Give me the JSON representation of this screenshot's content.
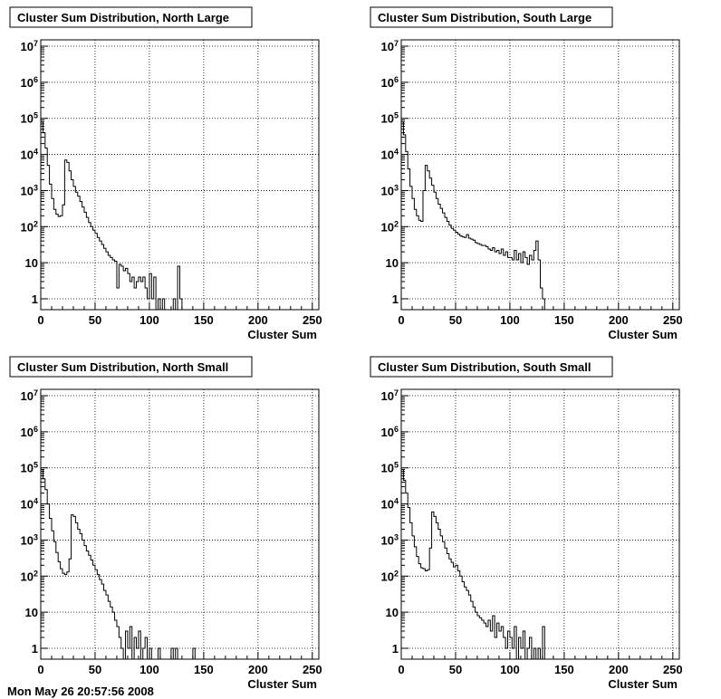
{
  "footer": "Mon May 26 20:57:56 2008",
  "chart_data": [
    {
      "type": "histogram",
      "title": "Cluster Sum Distribution, North Large",
      "xlabel": "Cluster Sum",
      "ylabel": "",
      "xlim": [
        0,
        256
      ],
      "ylim": [
        0.5,
        15000000
      ],
      "yscale": "log",
      "grid": true,
      "x_ticks": [
        0,
        50,
        100,
        150,
        200,
        250
      ],
      "y_ticks": [
        {
          "value": 1,
          "base": "1",
          "exp": ""
        },
        {
          "value": 10,
          "base": "10",
          "exp": ""
        },
        {
          "value": 100,
          "base": "10",
          "exp": "2"
        },
        {
          "value": 1000,
          "base": "10",
          "exp": "3"
        },
        {
          "value": 10000,
          "base": "10",
          "exp": "4"
        },
        {
          "value": 100000,
          "base": "10",
          "exp": "5"
        },
        {
          "value": 1000000,
          "base": "10",
          "exp": "6"
        },
        {
          "value": 10000000,
          "base": "10",
          "exp": "7"
        }
      ],
      "x": [
        0,
        2,
        4,
        6,
        8,
        10,
        12,
        14,
        16,
        18,
        20,
        22,
        24,
        26,
        28,
        30,
        32,
        34,
        36,
        38,
        40,
        42,
        44,
        46,
        48,
        50,
        52,
        54,
        56,
        58,
        60,
        62,
        64,
        66,
        68,
        70,
        72,
        74,
        76,
        78,
        80,
        82,
        84,
        86,
        88,
        90,
        92,
        94,
        96,
        98,
        100,
        102,
        104,
        106,
        108,
        110,
        112,
        114,
        116,
        118,
        120,
        122,
        124,
        126,
        128
      ],
      "values": [
        80000,
        40000,
        15000,
        5000,
        1500,
        600,
        300,
        220,
        190,
        200,
        400,
        7000,
        6000,
        3500,
        2000,
        1300,
        900,
        700,
        500,
        350,
        250,
        180,
        130,
        100,
        80,
        65,
        50,
        40,
        32,
        25,
        20,
        16,
        14,
        12,
        11,
        2,
        9,
        8,
        6,
        7,
        5,
        3,
        4,
        2,
        3,
        4,
        3,
        4,
        2,
        1,
        5,
        1,
        4,
        0.5,
        1,
        0.5,
        1,
        0.5,
        0.5,
        0.5,
        0.5,
        1,
        0.5,
        8,
        1
      ]
    },
    {
      "type": "histogram",
      "title": "Cluster Sum Distribution, South Large",
      "xlabel": "Cluster Sum",
      "ylabel": "",
      "xlim": [
        0,
        256
      ],
      "ylim": [
        0.5,
        15000000
      ],
      "yscale": "log",
      "grid": true,
      "x_ticks": [
        0,
        50,
        100,
        150,
        200,
        250
      ],
      "y_ticks": [
        {
          "value": 1,
          "base": "1",
          "exp": ""
        },
        {
          "value": 10,
          "base": "10",
          "exp": ""
        },
        {
          "value": 100,
          "base": "10",
          "exp": "2"
        },
        {
          "value": 1000,
          "base": "10",
          "exp": "3"
        },
        {
          "value": 10000,
          "base": "10",
          "exp": "4"
        },
        {
          "value": 100000,
          "base": "10",
          "exp": "5"
        },
        {
          "value": 1000000,
          "base": "10",
          "exp": "6"
        },
        {
          "value": 10000000,
          "base": "10",
          "exp": "7"
        }
      ],
      "x": [
        0,
        2,
        4,
        6,
        8,
        10,
        12,
        14,
        16,
        18,
        20,
        22,
        24,
        26,
        28,
        30,
        32,
        34,
        36,
        38,
        40,
        42,
        44,
        46,
        48,
        50,
        52,
        54,
        56,
        58,
        60,
        62,
        64,
        66,
        68,
        70,
        72,
        74,
        76,
        78,
        80,
        82,
        84,
        86,
        88,
        90,
        92,
        94,
        96,
        98,
        100,
        102,
        104,
        106,
        108,
        110,
        112,
        114,
        116,
        118,
        120,
        122,
        124,
        126,
        128,
        130,
        132
      ],
      "values": [
        80000,
        35000,
        12000,
        4000,
        1300,
        600,
        300,
        200,
        150,
        140,
        1000,
        5000,
        3500,
        2200,
        1400,
        900,
        600,
        420,
        320,
        240,
        180,
        140,
        110,
        90,
        80,
        70,
        62,
        55,
        52,
        50,
        60,
        48,
        45,
        42,
        36,
        34,
        32,
        30,
        30,
        28,
        24,
        22,
        26,
        20,
        22,
        18,
        24,
        16,
        20,
        14,
        14,
        12,
        22,
        12,
        18,
        10,
        20,
        14,
        9,
        16,
        12,
        22,
        40,
        12,
        2,
        1,
        0.5
      ]
    },
    {
      "type": "histogram",
      "title": "Cluster Sum Distribution, North Small",
      "xlabel": "Cluster Sum",
      "ylabel": "",
      "xlim": [
        0,
        256
      ],
      "ylim": [
        0.5,
        15000000
      ],
      "yscale": "log",
      "grid": true,
      "x_ticks": [
        0,
        50,
        100,
        150,
        200,
        250
      ],
      "y_ticks": [
        {
          "value": 1,
          "base": "1",
          "exp": ""
        },
        {
          "value": 10,
          "base": "10",
          "exp": ""
        },
        {
          "value": 100,
          "base": "10",
          "exp": "2"
        },
        {
          "value": 1000,
          "base": "10",
          "exp": "3"
        },
        {
          "value": 10000,
          "base": "10",
          "exp": "4"
        },
        {
          "value": 100000,
          "base": "10",
          "exp": "5"
        },
        {
          "value": 1000000,
          "base": "10",
          "exp": "6"
        },
        {
          "value": 10000000,
          "base": "10",
          "exp": "7"
        }
      ],
      "x": [
        0,
        2,
        4,
        6,
        8,
        10,
        12,
        14,
        16,
        18,
        20,
        22,
        24,
        26,
        28,
        30,
        32,
        34,
        36,
        38,
        40,
        42,
        44,
        46,
        48,
        50,
        52,
        54,
        56,
        58,
        60,
        62,
        64,
        66,
        68,
        70,
        72,
        74,
        76,
        78,
        80,
        82,
        84,
        86,
        88,
        90,
        92,
        94,
        96,
        98,
        100,
        102,
        104,
        106,
        108,
        110,
        112,
        114,
        116,
        118,
        120,
        122,
        124,
        126,
        128,
        130,
        132,
        134,
        136,
        138,
        140,
        142
      ],
      "values": [
        90000,
        50000,
        25000,
        10000,
        4000,
        1800,
        900,
        450,
        250,
        160,
        120,
        110,
        130,
        300,
        5000,
        4500,
        3000,
        2000,
        1500,
        1000,
        700,
        500,
        380,
        280,
        200,
        150,
        110,
        80,
        60,
        40,
        30,
        20,
        14,
        10,
        6,
        4,
        2,
        1,
        0.5,
        3,
        1,
        4,
        0.5,
        2,
        1,
        3,
        0.5,
        1,
        2,
        0.5,
        1,
        0.5,
        0.5,
        0.5,
        1,
        0.5,
        0.5,
        0.5,
        0.5,
        0.5,
        1,
        0.5,
        1,
        0.5,
        0.5,
        0.5,
        0.5,
        0.5,
        0.5,
        0.5,
        1,
        0.5
      ]
    },
    {
      "type": "histogram",
      "title": "Cluster Sum Distribution, South Small",
      "xlabel": "Cluster Sum",
      "ylabel": "",
      "xlim": [
        0,
        256
      ],
      "ylim": [
        0.5,
        15000000
      ],
      "yscale": "log",
      "grid": true,
      "x_ticks": [
        0,
        50,
        100,
        150,
        200,
        250
      ],
      "y_ticks": [
        {
          "value": 1,
          "base": "1",
          "exp": ""
        },
        {
          "value": 10,
          "base": "10",
          "exp": ""
        },
        {
          "value": 100,
          "base": "10",
          "exp": "2"
        },
        {
          "value": 1000,
          "base": "10",
          "exp": "3"
        },
        {
          "value": 10000,
          "base": "10",
          "exp": "4"
        },
        {
          "value": 100000,
          "base": "10",
          "exp": "5"
        },
        {
          "value": 1000000,
          "base": "10",
          "exp": "6"
        },
        {
          "value": 10000000,
          "base": "10",
          "exp": "7"
        }
      ],
      "x": [
        0,
        2,
        4,
        6,
        8,
        10,
        12,
        14,
        16,
        18,
        20,
        22,
        24,
        26,
        28,
        30,
        32,
        34,
        36,
        38,
        40,
        42,
        44,
        46,
        48,
        50,
        52,
        54,
        56,
        58,
        60,
        62,
        64,
        66,
        68,
        70,
        72,
        74,
        76,
        78,
        80,
        82,
        84,
        86,
        88,
        90,
        92,
        94,
        96,
        98,
        100,
        102,
        104,
        106,
        108,
        110,
        112,
        114,
        116,
        118,
        120,
        122,
        124,
        126,
        128,
        130,
        132,
        134
      ],
      "values": [
        90000,
        45000,
        20000,
        8000,
        3000,
        1300,
        650,
        350,
        220,
        170,
        160,
        140,
        150,
        600,
        6000,
        4500,
        3000,
        2000,
        1300,
        900,
        600,
        420,
        300,
        240,
        180,
        200,
        140,
        100,
        70,
        50,
        40,
        30,
        20,
        14,
        10,
        8,
        7,
        6,
        5,
        4,
        6,
        3,
        8,
        2,
        5,
        3,
        4,
        2,
        1,
        3,
        2,
        1,
        4,
        0.5,
        2,
        1,
        3,
        0.5,
        1,
        2,
        0.5,
        1,
        0.5,
        1,
        0.5,
        4,
        0.5,
        0.5
      ]
    }
  ]
}
